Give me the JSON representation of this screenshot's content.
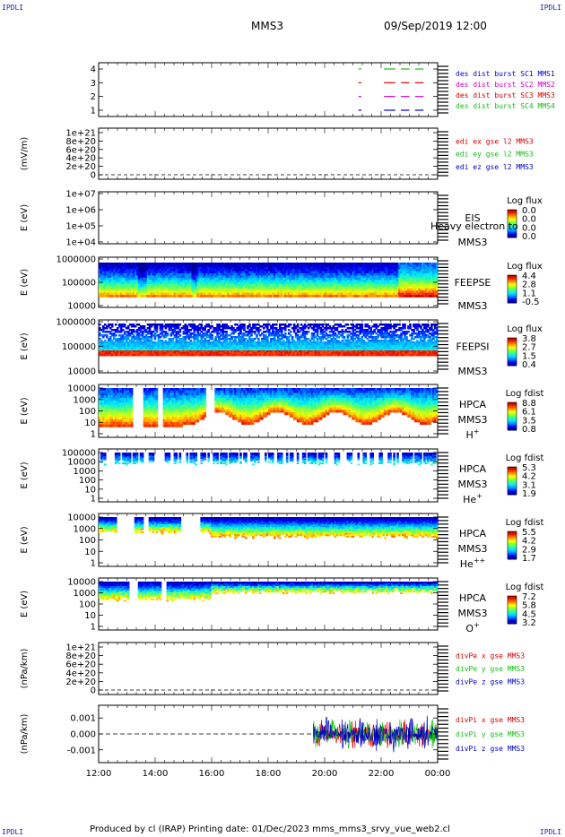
{
  "corners": {
    "tl": "IPDLI",
    "tr": "IPDLI",
    "bl": "IPDLI",
    "br": "IPDLI"
  },
  "header": {
    "spacecraft": "MMS3",
    "datetime": "09/Sep/2019 12:00"
  },
  "footer": {
    "text": "Produced by cl (IRAP)   Printing date: 01/Dec/2023   mms_mms3_srvy_vue_web2.cl"
  },
  "x_axis": {
    "ticks": [
      "12:00",
      "14:00",
      "16:00",
      "18:00",
      "20:00",
      "22:00",
      "00:00"
    ]
  },
  "colors": {
    "red": "#d40000",
    "green": "#10c010",
    "blue": "#0000c8",
    "magenta": "#d000d0"
  },
  "chart_data": [
    {
      "type": "line",
      "ylabel": "",
      "yticks": [
        "1",
        "2",
        "3",
        "4"
      ],
      "ylim": [
        0.5,
        4.5
      ],
      "series": [
        {
          "name": "des dist burst SC1 MMS1",
          "color": "#10c010",
          "y": 4,
          "segments": [
            [
              21.2,
              21.3
            ],
            [
              22.1,
              22.5
            ],
            [
              22.7,
              23.0
            ],
            [
              23.2,
              23.5
            ]
          ]
        },
        {
          "name": "des dist burst SC2 MMS2",
          "color": "#d40000",
          "y": 3,
          "segments": [
            [
              21.2,
              21.3
            ],
            [
              22.1,
              22.5
            ],
            [
              22.7,
              23.0
            ],
            [
              23.2,
              23.5
            ]
          ]
        },
        {
          "name": "des dist burst SC3 MMS3",
          "color": "#d000d0",
          "y": 2,
          "segments": [
            [
              21.2,
              21.3
            ],
            [
              22.1,
              22.5
            ],
            [
              22.7,
              23.0
            ],
            [
              23.2,
              23.5
            ]
          ]
        },
        {
          "name": "des dist burst SC4 MMS4",
          "color": "#0000c8",
          "y": 1,
          "segments": [
            [
              21.2,
              21.3
            ],
            [
              22.1,
              22.5
            ],
            [
              22.7,
              23.0
            ],
            [
              23.2,
              23.5
            ]
          ]
        }
      ],
      "legend_colors": [
        "#0000c8",
        "#d000d0",
        "#d40000",
        "#10c010"
      ]
    },
    {
      "type": "line",
      "ylabel": "(mV/m)",
      "yticks": [
        "0",
        "2e+20",
        "4e+20",
        "6e+20",
        "8e+20",
        "1e+21"
      ],
      "ylim": [
        0,
        1e+21
      ],
      "series": [
        {
          "name": "edi ex gse l2 MMS3",
          "color": "#d40000"
        },
        {
          "name": "edi ey gse l2 MMS3",
          "color": "#10c010"
        },
        {
          "name": "edi ez gse l2 MMS3",
          "color": "#0000c8"
        }
      ]
    },
    {
      "type": "heatmap",
      "ylabel": "E (eV)",
      "yticks": [
        "1e+04",
        "1e+05",
        "1e+06",
        "1e+07"
      ],
      "instrument": "EIS",
      "subtitle": "MMS3",
      "overlay_text": "Heavy electron to",
      "cbar_title": "Log flux",
      "cbar_ticks": [
        "0.0",
        "0.0",
        "0.0",
        "0.0"
      ]
    },
    {
      "type": "heatmap",
      "ylabel": "E (eV)",
      "yticks": [
        "10000",
        "100000",
        "1000000"
      ],
      "instrument": "FEEPSE",
      "subtitle": "MMS3",
      "cbar_title": "Log flux",
      "cbar_ticks": [
        "4.4",
        "2.8",
        "1.1",
        "-0.5"
      ]
    },
    {
      "type": "heatmap",
      "ylabel": "E (eV)",
      "yticks": [
        "10000",
        "100000",
        "1000000"
      ],
      "instrument": "FEEPSI",
      "subtitle": "MMS3",
      "cbar_title": "Log flux",
      "cbar_ticks": [
        "3.8",
        "2.7",
        "1.5",
        "0.4"
      ]
    },
    {
      "type": "heatmap",
      "ylabel": "E (eV)",
      "yticks": [
        "1",
        "10",
        "100",
        "1000",
        "10000"
      ],
      "instrument": "HPCA",
      "subtitle": "MMS3",
      "species": "H",
      "species_sup": "+",
      "cbar_title": "Log fdist",
      "cbar_ticks": [
        "8.8",
        "6.1",
        "3.5",
        "0.8"
      ]
    },
    {
      "type": "heatmap",
      "ylabel": "E (eV)",
      "yticks": [
        "1",
        "10",
        "100",
        "1000",
        "10000",
        "100000"
      ],
      "instrument": "HPCA",
      "subtitle": "MMS3",
      "species": "He",
      "species_sup": "+",
      "cbar_title": "Log fdist",
      "cbar_ticks": [
        "5.3",
        "4.2",
        "3.1",
        "1.9"
      ]
    },
    {
      "type": "heatmap",
      "ylabel": "E (eV)",
      "yticks": [
        "1",
        "10",
        "100",
        "1000",
        "10000"
      ],
      "instrument": "HPCA",
      "subtitle": "MMS3",
      "species": "He",
      "species_sup": "++",
      "cbar_title": "Log fdist",
      "cbar_ticks": [
        "5.5",
        "4.2",
        "2.9",
        "1.7"
      ]
    },
    {
      "type": "heatmap",
      "ylabel": "E (eV)",
      "yticks": [
        "1",
        "10",
        "100",
        "1000",
        "10000"
      ],
      "instrument": "HPCA",
      "subtitle": "MMS3",
      "species": "O",
      "species_sup": "+",
      "cbar_title": "Log fdist",
      "cbar_ticks": [
        "7.2",
        "5.8",
        "4.5",
        "3.2"
      ]
    },
    {
      "type": "line",
      "ylabel": "(nPa/km)",
      "yticks": [
        "0",
        "2e+20",
        "4e+20",
        "6e+20",
        "8e+20",
        "1e+21"
      ],
      "ylim": [
        0,
        1e+21
      ],
      "series": [
        {
          "name": "divPe x gse MMS3",
          "color": "#d40000"
        },
        {
          "name": "divPe y gse MMS3",
          "color": "#10c010"
        },
        {
          "name": "divPe z gse MMS3",
          "color": "#0000c8"
        }
      ]
    },
    {
      "type": "line",
      "ylabel": "(nPa/km)",
      "yticks": [
        "-0.001",
        "0.000",
        "0.001"
      ],
      "ylim": [
        -0.0018,
        0.0018
      ],
      "data_start_hour": 19.6,
      "series": [
        {
          "name": "divPi x gse MMS3",
          "color": "#d40000"
        },
        {
          "name": "divPi y gse MMS3",
          "color": "#10c010"
        },
        {
          "name": "divPi z gse MMS3",
          "color": "#0000c8"
        }
      ]
    }
  ]
}
